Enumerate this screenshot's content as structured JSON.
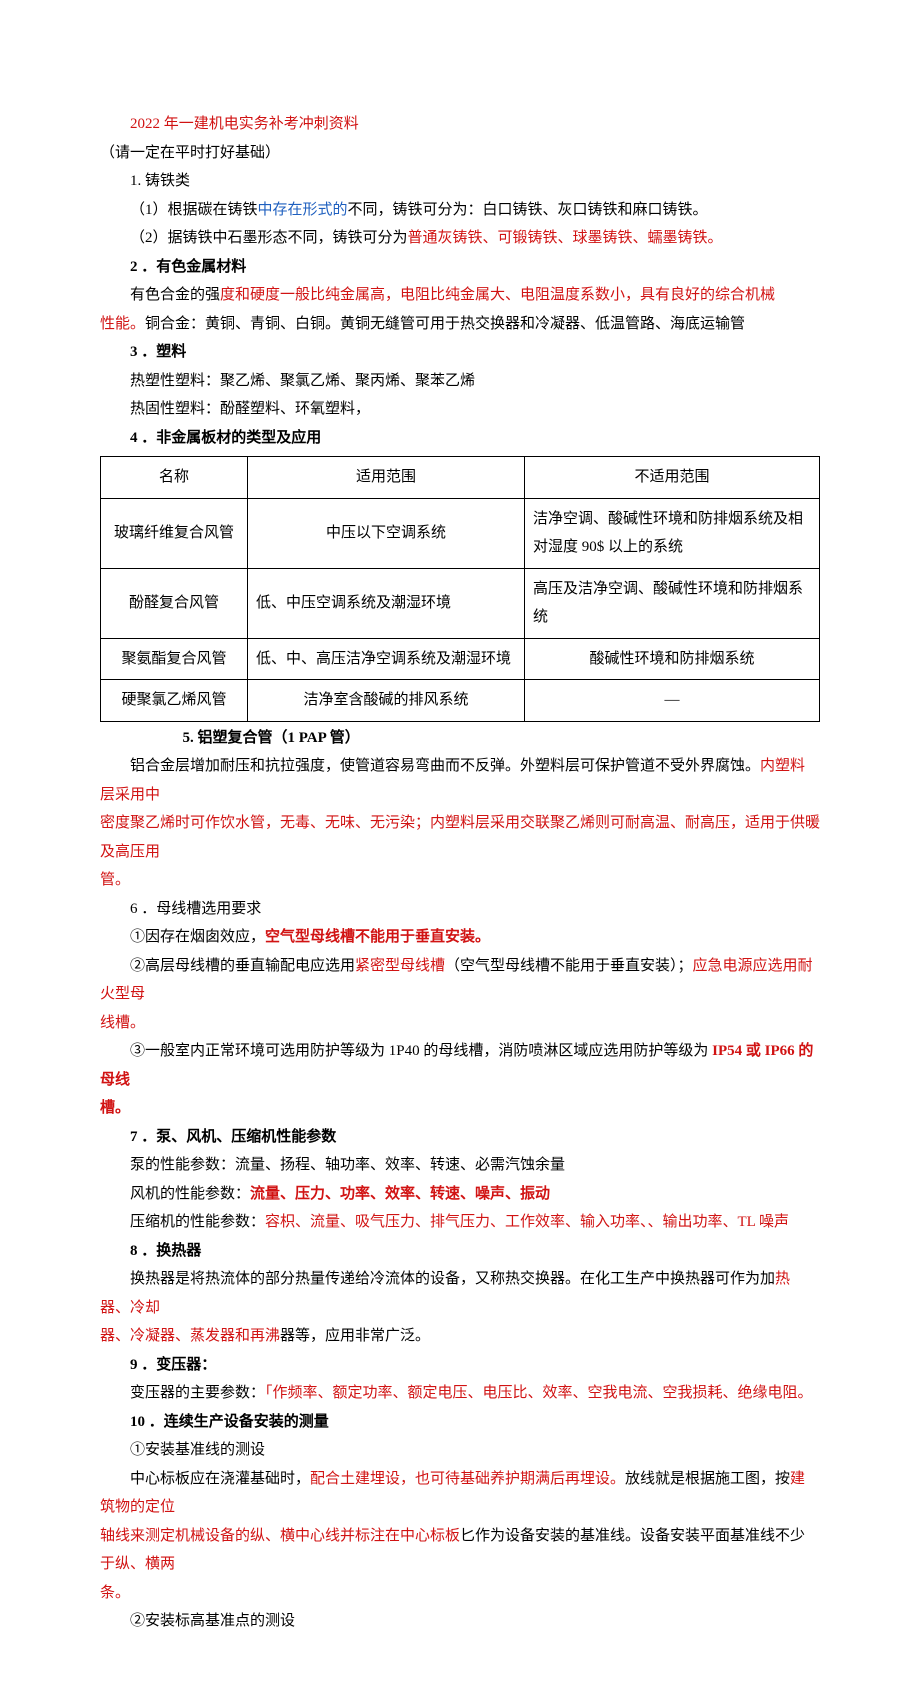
{
  "title": "2022 年一建机电实务补考冲刺资料",
  "subtitle": "（请一定在平时打好基础）",
  "s1": {
    "heading": "1. 铸铁类",
    "p1a": "（1）根据碳在铸铁",
    "p1b": "中存在形式的",
    "p1c": "不同，铸铁可分为：白口铸铁、灰口铸铁和麻口铸铁。",
    "p2a": "（2）据铸铁中石墨形态不同，铸铁可分为",
    "p2b": "普通灰铸铁、可锻铸铁、球墨铸铁、蠕墨铸铁。"
  },
  "s2": {
    "heading": "2 ．有色金属材料",
    "p1a": "有色合金的强",
    "p1b": "度和硬度一般比纯金属高，电阻比纯金属大、电阻温度系数小，具有良好的综合机械",
    "p1c": "性能。",
    "p1d": "铜合金：黄铜、青铜、白铜。黄铜无缝管可用于热交换器和冷凝器、低温管路、海底运输管"
  },
  "s3": {
    "heading": "3 ．塑料",
    "p1": "热塑性塑料：聚乙烯、聚氯乙烯、聚丙烯、聚苯乙烯",
    "p2": "热固性塑料：酚醛塑料、环氧塑料，"
  },
  "s4": {
    "heading": "4 ．非金属板材的类型及应用",
    "table": {
      "headers": [
        "名称",
        "适用范围",
        "不适用范围"
      ],
      "rows": [
        [
          "玻璃纤维复合风管",
          "中压以下空调系统",
          "洁净空调、酸碱性环境和防排烟系统及相对湿度 90$ 以上的系统"
        ],
        [
          "酚醛复合风管",
          "低、中压空调系统及潮湿环境",
          "高压及洁净空调、酸碱性环境和防排烟系统"
        ],
        [
          "聚氨酯复合风管",
          "低、中、高压洁净空调系统及潮湿环境",
          "酸碱性环境和防排烟系统"
        ],
        [
          "硬聚氯乙烯风管",
          "洁净室含酸碱的排风系统",
          "—"
        ]
      ]
    }
  },
  "s5": {
    "heading": "5. 铝塑复合管（1 PAP 管）",
    "p1a": "铝合金层增加耐压和抗拉强度，使管道容易弯曲而不反弹。外塑料层可保护管道不受外界腐蚀。",
    "p1b": "内塑料层采用中",
    "p1c": "密度聚乙烯时可作饮水管，无毒、无味、无污染；内塑料层采用交联聚乙烯则可耐高温、耐高压，适用于供暖及高压用",
    "p1d": "管。"
  },
  "s6": {
    "heading": "6 ．母线槽选用要求",
    "p1a": "①因存在烟囱效应，",
    "p1b": "空气型母线槽不能用于垂直安装。",
    "p2a": "②高层母线槽的垂直输配电应选用",
    "p2b": "紧密型母线槽",
    "p2c": "（空气型母线槽不能用于垂直安装）；",
    "p2d": "应急电源应选用耐火型母",
    "p2e": "线槽。",
    "p3a": "③一般室内正常环境可选用防护等级为 1P40 的母线槽，消防喷淋区域应选用防护等级为",
    "p3b": " IP54 或 IP66 的母线",
    "p3c": "槽。"
  },
  "s7": {
    "heading": "7 ．泵、风机、压缩机性能参数",
    "p1": "泵的性能参数：流量、扬程、轴功率、效率、转速、必需汽蚀余量",
    "p2a": "风机的性能参数：",
    "p2b": "流量、压力、功率、效率、转速、噪声、振动",
    "p3a": "压缩机的性能参数：",
    "p3b": "容枳、流量、吸气压力、排气压力、工作效率、输入功率、、输出功率、TL 噪声"
  },
  "s8": {
    "heading": "8 ．换热器",
    "p1a": "换热器是将热流体的部分热量传递给冷流体的设备，又称热交换器。在化工生产中换热器可作为加",
    "p1b": "热器、冷却",
    "p1c": "器、冷凝器、蒸发器和再沸",
    "p1d": "器等，应用非常广泛。"
  },
  "s9": {
    "heading": "9 ．变压器：",
    "p1a": "变压器的主要参数：",
    "p1b": "「作频率、额定功率、额定电压、电压比、效率、空我电流、空我损耗、绝缘电阻。"
  },
  "s10": {
    "heading": "10 ．连续生产设备安装的测量",
    "p1": "①安装基准线的测设",
    "p2a": "中心标板应在浇灌基础时，",
    "p2b": "配合土建埋设，也可待基础养护期满后再埋设。",
    "p2c": "放线就是根据施工图，按",
    "p2d": "建筑物的定位",
    "p2e": "轴线来测定机械设备的纵、横中心线并标注在中心标板",
    "p2f": "匕作为设备安装的基准线。设备安装平面基准线不少",
    "p2g": "于纵、横两",
    "p2h": "条。",
    "p3": "②安装标高基准点的测设"
  }
}
